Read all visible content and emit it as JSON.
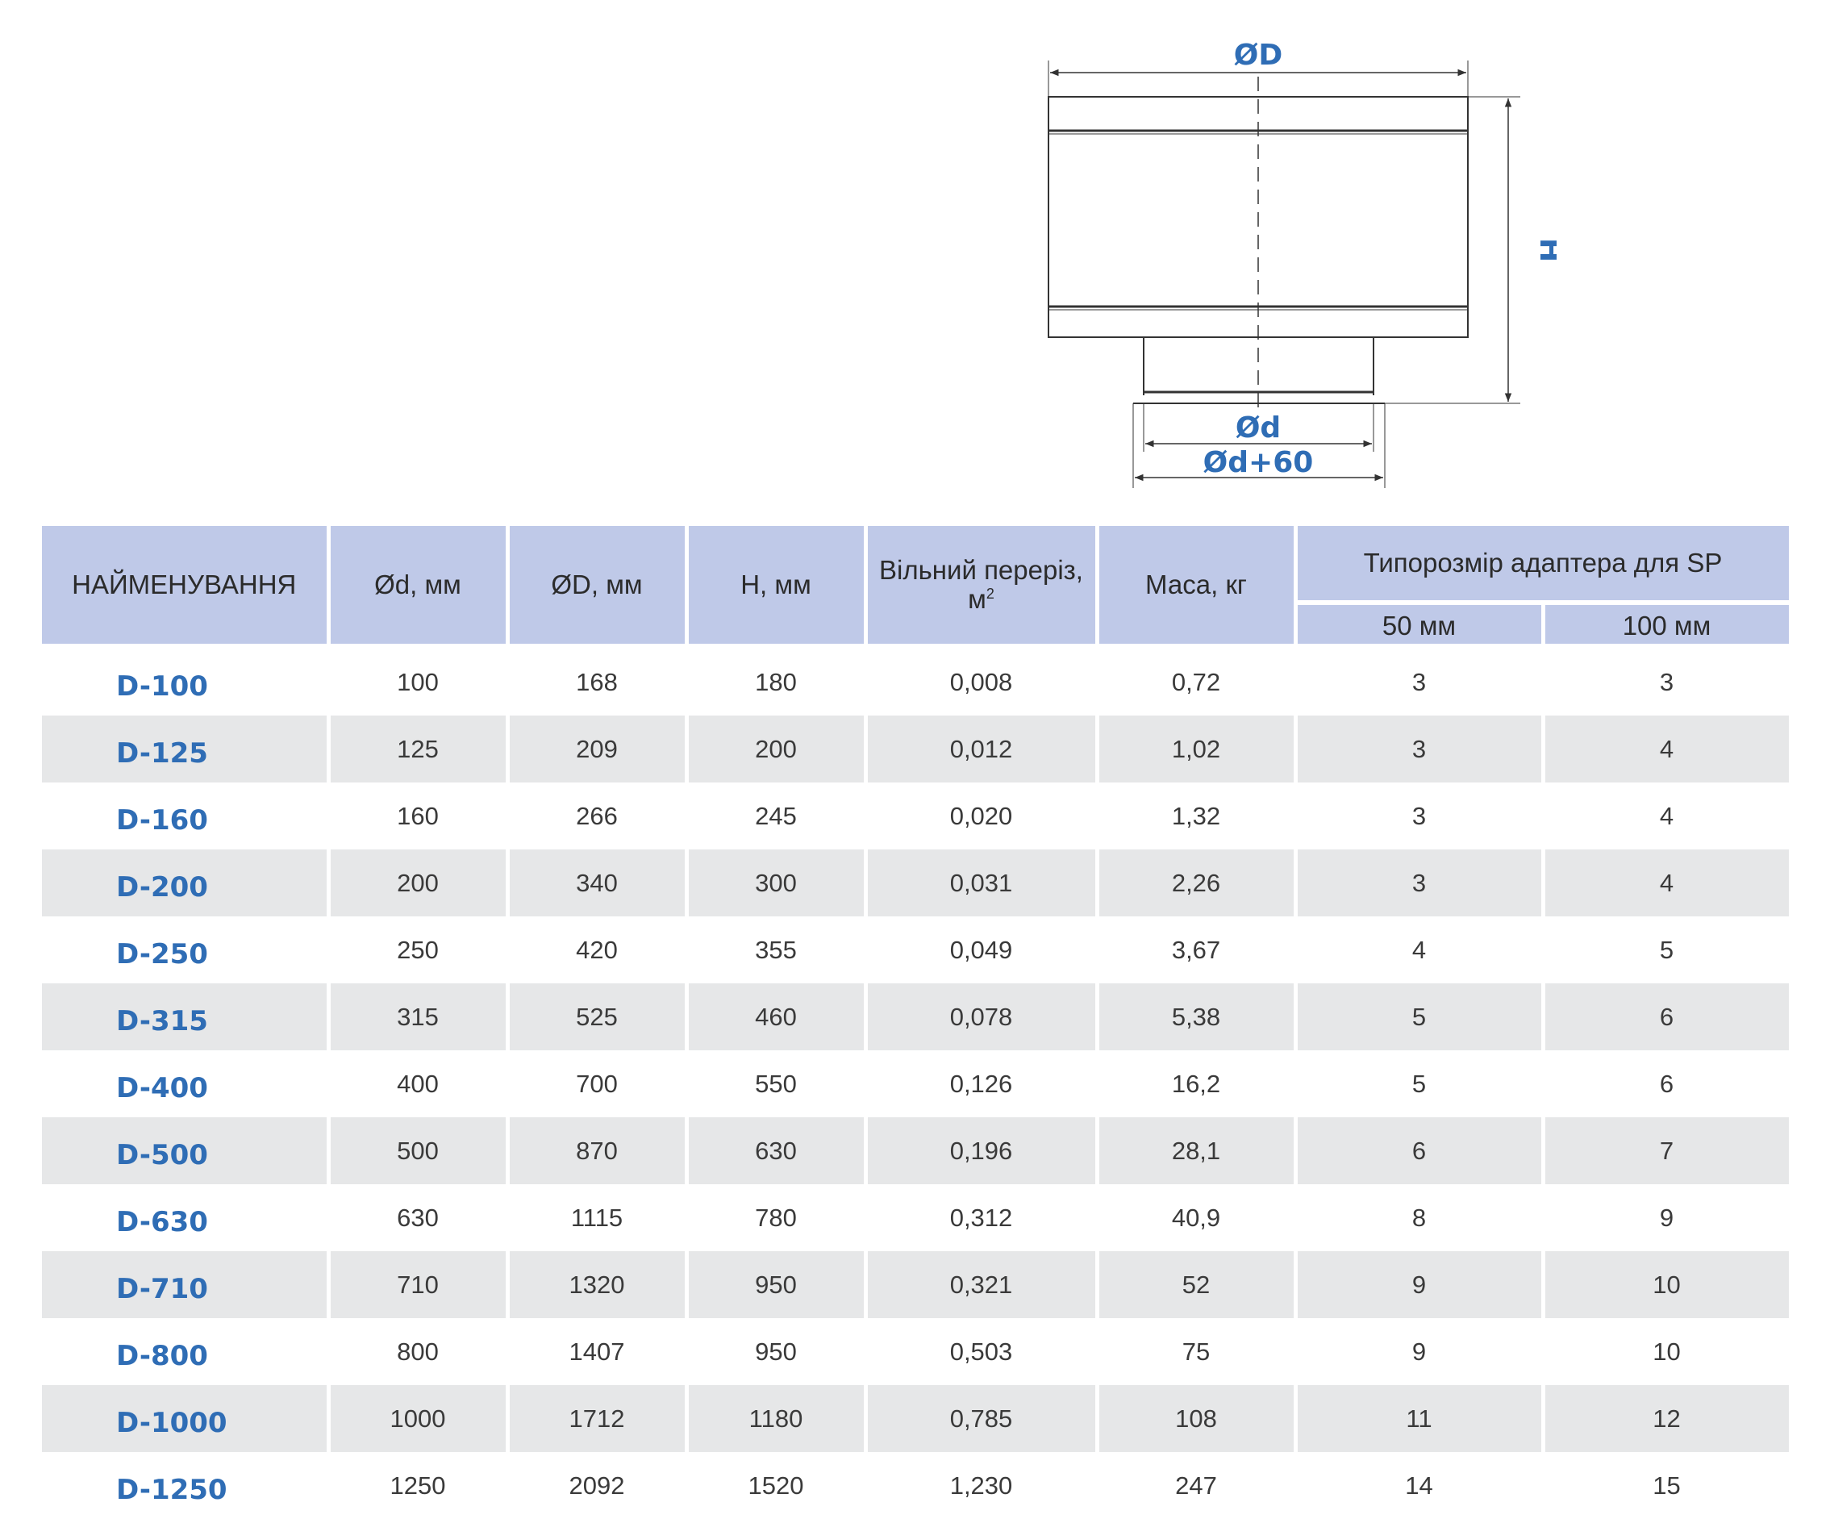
{
  "drawing": {
    "label_D": "ØD",
    "label_H": "H",
    "label_d": "Ød",
    "label_d60": "Ød+60",
    "line_color": "#333333",
    "label_color": "#2f6db5"
  },
  "table": {
    "header": {
      "name": "НАЙМЕНУВАННЯ",
      "d": "Ød, мм",
      "D": "ØD, мм",
      "H": "H, мм",
      "free_section": "Вільний переріз, м",
      "free_section_sup": "2",
      "mass": "Маса, кг",
      "adapter_group": "Типорозмір адаптера для SP",
      "adapter_50": "50 мм",
      "adapter_100": "100 мм"
    },
    "header_color": "#bfc9e8",
    "stripe_color": "#e6e7e8",
    "name_color": "#2f6db5",
    "rows": [
      {
        "name": "D-100",
        "d": "100",
        "D": "168",
        "H": "180",
        "free": "0,008",
        "mass": "0,72",
        "a50": "3",
        "a100": "3"
      },
      {
        "name": "D-125",
        "d": "125",
        "D": "209",
        "H": "200",
        "free": "0,012",
        "mass": "1,02",
        "a50": "3",
        "a100": "4"
      },
      {
        "name": "D-160",
        "d": "160",
        "D": "266",
        "H": "245",
        "free": "0,020",
        "mass": "1,32",
        "a50": "3",
        "a100": "4"
      },
      {
        "name": "D-200",
        "d": "200",
        "D": "340",
        "H": "300",
        "free": "0,031",
        "mass": "2,26",
        "a50": "3",
        "a100": "4"
      },
      {
        "name": "D-250",
        "d": "250",
        "D": "420",
        "H": "355",
        "free": "0,049",
        "mass": "3,67",
        "a50": "4",
        "a100": "5"
      },
      {
        "name": "D-315",
        "d": "315",
        "D": "525",
        "H": "460",
        "free": "0,078",
        "mass": "5,38",
        "a50": "5",
        "a100": "6"
      },
      {
        "name": "D-400",
        "d": "400",
        "D": "700",
        "H": "550",
        "free": "0,126",
        "mass": "16,2",
        "a50": "5",
        "a100": "6"
      },
      {
        "name": "D-500",
        "d": "500",
        "D": "870",
        "H": "630",
        "free": "0,196",
        "mass": "28,1",
        "a50": "6",
        "a100": "7"
      },
      {
        "name": "D-630",
        "d": "630",
        "D": "1115",
        "H": "780",
        "free": "0,312",
        "mass": "40,9",
        "a50": "8",
        "a100": "9"
      },
      {
        "name": "D-710",
        "d": "710",
        "D": "1320",
        "H": "950",
        "free": "0,321",
        "mass": "52",
        "a50": "9",
        "a100": "10"
      },
      {
        "name": "D-800",
        "d": "800",
        "D": "1407",
        "H": "950",
        "free": "0,503",
        "mass": "75",
        "a50": "9",
        "a100": "10"
      },
      {
        "name": "D-1000",
        "d": "1000",
        "D": "1712",
        "H": "1180",
        "free": "0,785",
        "mass": "108",
        "a50": "11",
        "a100": "12"
      },
      {
        "name": "D-1250",
        "d": "1250",
        "D": "2092",
        "H": "1520",
        "free": "1,230",
        "mass": "247",
        "a50": "14",
        "a100": "15"
      }
    ]
  }
}
